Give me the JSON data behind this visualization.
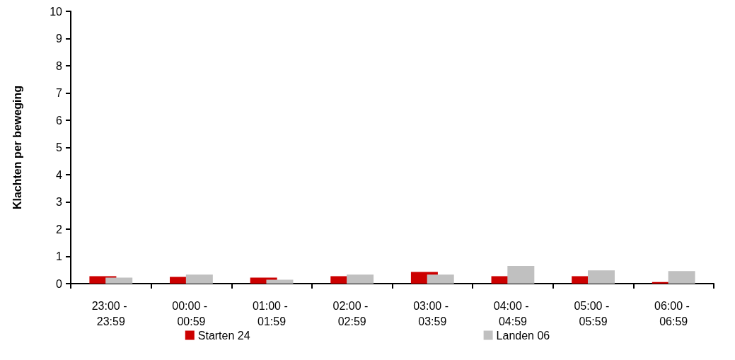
{
  "chart_data": {
    "type": "bar",
    "ylabel": "Klachten per beweging",
    "categories": [
      "23:00 - 23:59",
      "00:00 - 00:59",
      "01:00 - 01:59",
      "02:00 - 02:59",
      "03:00 - 03:59",
      "04:00 - 04:59",
      "05:00 - 05:59",
      "06:00 - 06:59"
    ],
    "series": [
      {
        "name": "Starten 24",
        "color": "#cc0000",
        "values": [
          0.27,
          0.25,
          0.22,
          0.27,
          0.43,
          0.27,
          0.27,
          0.06
        ]
      },
      {
        "name": "Landen 06",
        "color": "#c0c0c0",
        "values": [
          0.22,
          0.33,
          0.14,
          0.33,
          0.33,
          0.65,
          0.49,
          0.46
        ]
      }
    ],
    "ylim": [
      0,
      10
    ],
    "yticks": [
      0,
      1,
      2,
      3,
      4,
      5,
      6,
      7,
      8,
      9,
      10
    ],
    "grid": false,
    "legend": "bottom"
  }
}
